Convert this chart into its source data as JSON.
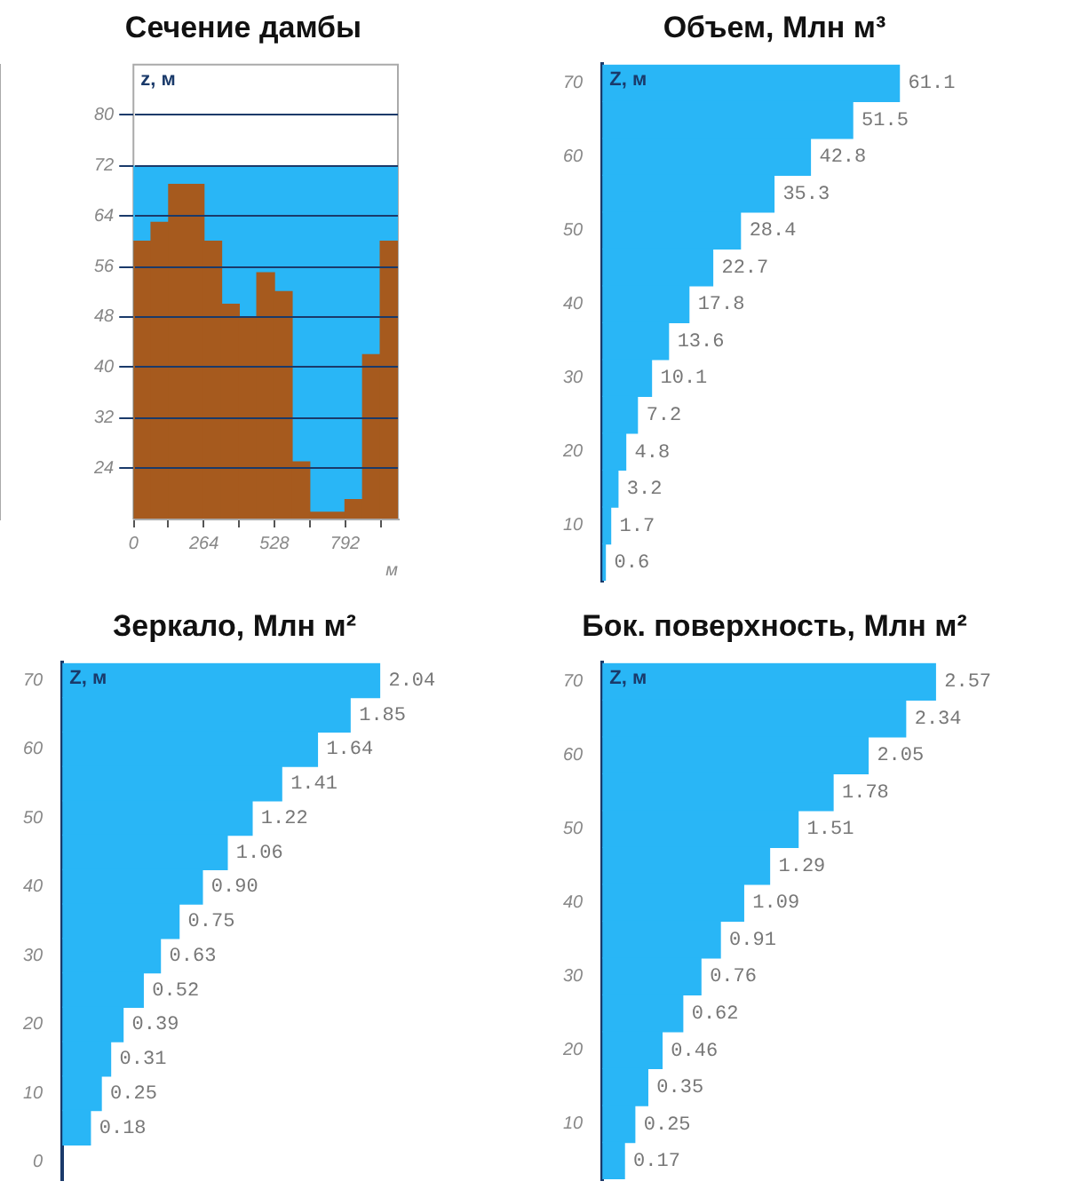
{
  "chart_data": [
    {
      "type": "histogram",
      "title": "Сечение дамбы",
      "ylabel": "z, м",
      "xlabel": "м",
      "color": "#a65a1e",
      "bins": [
        0,
        66,
        132,
        264,
        330,
        396,
        462,
        528,
        594,
        660,
        792,
        858,
        924,
        990
      ],
      "values": [
        60,
        63,
        69,
        60,
        50,
        48,
        55,
        52,
        25,
        17,
        19,
        42,
        60
      ],
      "xlim": [
        0,
        990
      ],
      "xticks": [
        0,
        {
          "value": 132,
          "label": null
        },
        264,
        {
          "value": 396,
          "label": null
        },
        528,
        {
          "value": 660,
          "label": null
        },
        792,
        {
          "value": 924,
          "label": null
        }
      ],
      "ylim": [
        16,
        88
      ],
      "yticks": [
        24,
        32,
        40,
        48,
        56,
        64,
        72,
        80
      ],
      "grid": "y",
      "bands": [
        {
          "axis": "y",
          "from": 16,
          "to": 72,
          "color": "#29b6f6"
        }
      ]
    },
    {
      "type": "bar",
      "orientation": "horizontal",
      "title": "Объем, Млн м³",
      "ylabel": "Z, м",
      "color": "#29b6f6",
      "categories": [
        "70",
        null,
        "60",
        null,
        "50",
        null,
        "40",
        null,
        "30",
        null,
        "20",
        null,
        "10",
        null
      ],
      "values": [
        61.1,
        51.5,
        42.8,
        35.3,
        28.4,
        22.7,
        17.8,
        13.6,
        10.1,
        7.2,
        4.8,
        3.2,
        1.7,
        0.6
      ],
      "value_labels": [
        "61.1",
        "51.5",
        "42.8",
        "35.3",
        "28.4",
        "22.7",
        "17.8",
        "13.6",
        "10.1",
        "7.2",
        "4.8",
        "3.2",
        "1.7",
        "0.6"
      ]
    },
    {
      "type": "bar",
      "orientation": "horizontal",
      "title": "Зеркало, Млн м²",
      "ylabel": "Z, м",
      "color": "#29b6f6",
      "categories": [
        "70",
        null,
        "60",
        null,
        "50",
        null,
        "40",
        null,
        "30",
        null,
        "20",
        null,
        "10",
        null,
        "0"
      ],
      "values": [
        2.04,
        1.85,
        1.64,
        1.41,
        1.22,
        1.06,
        0.9,
        0.75,
        0.63,
        0.52,
        0.39,
        0.31,
        0.25,
        0.18,
        null
      ],
      "value_labels": [
        "2.04",
        "1.85",
        "1.64",
        "1.41",
        "1.22",
        "1.06",
        "0.90",
        "0.75",
        "0.63",
        "0.52",
        "0.39",
        "0.31",
        "0.25",
        "0.18",
        null
      ]
    },
    {
      "type": "bar",
      "orientation": "horizontal",
      "title": "Бок. поверхность, Млн м²",
      "ylabel": "Z, м",
      "color": "#29b6f6",
      "categories": [
        "70",
        null,
        "60",
        null,
        "50",
        null,
        "40",
        null,
        "30",
        null,
        "20",
        null,
        "10",
        null
      ],
      "values": [
        2.57,
        2.34,
        2.05,
        1.78,
        1.51,
        1.29,
        1.09,
        0.91,
        0.76,
        0.62,
        0.46,
        0.35,
        0.25,
        0.17
      ],
      "value_labels": [
        "2.57",
        "2.34",
        "2.05",
        "1.78",
        "1.51",
        "1.29",
        "1.09",
        "0.91",
        "0.76",
        "0.62",
        "0.46",
        "0.35",
        "0.25",
        "0.17"
      ]
    }
  ]
}
